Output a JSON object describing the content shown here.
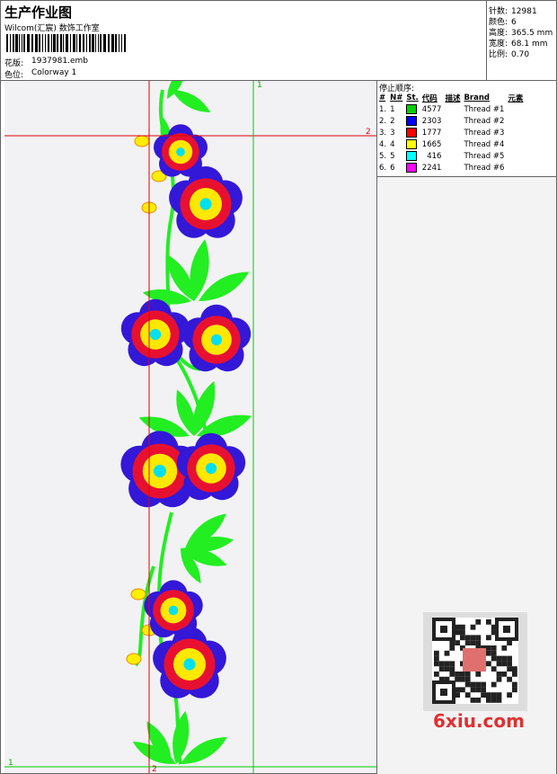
{
  "header": {
    "title": "生产作业图",
    "subtitle": "Wilcom(汇宸) 数饰工作室",
    "design_label": "花版:",
    "design": "1937981.emb",
    "colorway_label": "色位:",
    "colorway": "Colorway 1"
  },
  "stats": [
    {
      "label": "针数:",
      "value": "12981"
    },
    {
      "label": "颜色:",
      "value": "6"
    },
    {
      "label": "高度:",
      "value": "365.5 mm"
    },
    {
      "label": "宽度:",
      "value": "68.1 mm"
    },
    {
      "label": "比例:",
      "value": "0.70"
    }
  ],
  "stop_sequence": {
    "title": "停止顺序:",
    "columns": [
      "#",
      "N#",
      "St.",
      "代码",
      "描述",
      "Brand",
      "元素"
    ],
    "rows": [
      {
        "no": "1.",
        "n": "1",
        "color": "#00d000",
        "st": "4577",
        "desc": "Thread #1"
      },
      {
        "no": "2.",
        "n": "2",
        "color": "#0000ff",
        "st": "2303",
        "desc": "Thread #2"
      },
      {
        "no": "3.",
        "n": "3",
        "color": "#ff0000",
        "st": "1777",
        "desc": "Thread #3"
      },
      {
        "no": "4.",
        "n": "4",
        "color": "#ffff00",
        "st": "1665",
        "desc": "Thread #4"
      },
      {
        "no": "5.",
        "n": "5",
        "color": "#00ffff",
        "st": "416",
        "desc": "Thread #5"
      },
      {
        "no": "6.",
        "n": "6",
        "color": "#ff00ff",
        "st": "2241",
        "desc": "Thread #6"
      }
    ]
  },
  "guides": {
    "green_v": "1",
    "red_h": "2",
    "green_h": "1",
    "red_v": "2"
  },
  "watermark": "6xiu.com"
}
